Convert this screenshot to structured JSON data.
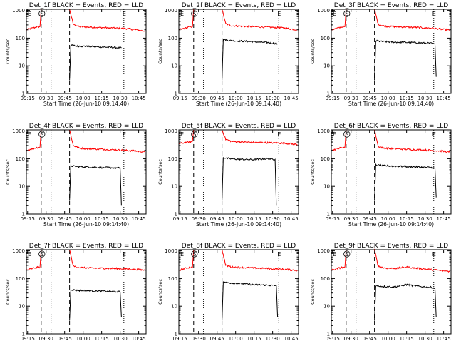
{
  "colors": {
    "events": "#000000",
    "lld": "#ff0000",
    "axis": "#000000",
    "background": "#ffffff"
  },
  "common": {
    "xlabel": "Start Time (26-Jun-10 09:14:40)",
    "ylabel": "Counts/sec",
    "x_tick_labels": [
      "09:15",
      "09:30",
      "09:45",
      "10:00",
      "10:15",
      "10:30",
      "10:45"
    ],
    "y_tick_labels": [
      "1",
      "10",
      "100",
      "1000"
    ],
    "markers": {
      "left_e": "E",
      "left_s": "S",
      "right_e": "E"
    }
  },
  "chart_data": [
    {
      "type": "line",
      "title": "Det_1f BLACK = Events, RED = LLD",
      "xlim": [
        "09:14",
        "10:51"
      ],
      "ylim": [
        1,
        1100
      ],
      "yscale": "log",
      "x_ticks": [
        "09:15",
        "09:30",
        "09:45",
        "10:00",
        "10:15",
        "10:30",
        "10:45"
      ],
      "y_ticks": [
        1,
        10,
        100,
        1000
      ],
      "dashed_lines": [
        "09:26",
        "09:49"
      ],
      "dotted_lines": [
        "09:34",
        "10:33"
      ],
      "series": [
        {
          "color": "red",
          "segments": [
            {
              "x": [
                "09:14",
                "09:19",
                "09:22",
                "09:25",
                "09:26"
              ],
              "y": [
                200,
                230,
                250,
                260,
                1100
              ]
            },
            {
              "x": [
                "09:49",
                "09:52",
                "09:57",
                "10:05",
                "10:15",
                "10:25",
                "10:35",
                "10:43",
                "10:50"
              ],
              "y": [
                1100,
                320,
                260,
                250,
                240,
                230,
                220,
                200,
                180
              ]
            }
          ]
        },
        {
          "color": "black",
          "segments": [
            {
              "x": [
                "09:49",
                "09:50",
                "09:55",
                "10:05",
                "10:15",
                "10:25",
                "10:31"
              ],
              "y": [
                3,
                55,
                52,
                50,
                48,
                46,
                44
              ]
            }
          ]
        }
      ]
    },
    {
      "type": "line",
      "title": "Det_2f BLACK = Events, RED = LLD",
      "xlim": [
        "09:14",
        "10:51"
      ],
      "ylim": [
        1,
        1100
      ],
      "yscale": "log",
      "x_ticks": [
        "09:15",
        "09:30",
        "09:45",
        "10:00",
        "10:15",
        "10:30",
        "10:45"
      ],
      "y_ticks": [
        1,
        10,
        100,
        1000
      ],
      "dashed_lines": [
        "09:26",
        "09:49"
      ],
      "dotted_lines": [
        "09:34",
        "10:35"
      ],
      "series": [
        {
          "color": "red",
          "segments": [
            {
              "x": [
                "09:14",
                "09:19",
                "09:22",
                "09:25",
                "09:26"
              ],
              "y": [
                200,
                230,
                250,
                260,
                1100
              ]
            },
            {
              "x": [
                "09:49",
                "09:52",
                "09:57",
                "10:05",
                "10:15",
                "10:25",
                "10:35",
                "10:43",
                "10:50"
              ],
              "y": [
                1100,
                330,
                280,
                270,
                260,
                250,
                240,
                220,
                200
              ]
            }
          ]
        },
        {
          "color": "black",
          "segments": [
            {
              "x": [
                "09:49",
                "09:50",
                "09:55",
                "10:05",
                "10:15",
                "10:25",
                "10:34"
              ],
              "y": [
                3,
                90,
                82,
                78,
                74,
                70,
                62
              ]
            }
          ]
        }
      ]
    },
    {
      "type": "line",
      "title": "Det_3f BLACK = Events, RED = LLD",
      "xlim": [
        "09:14",
        "10:51"
      ],
      "ylim": [
        1,
        1100
      ],
      "yscale": "log",
      "x_ticks": [
        "09:15",
        "09:30",
        "09:45",
        "10:00",
        "10:15",
        "10:30",
        "10:45"
      ],
      "y_ticks": [
        1,
        10,
        100,
        1000
      ],
      "dashed_lines": [
        "09:26",
        "09:49"
      ],
      "dotted_lines": [
        "09:34",
        "10:37"
      ],
      "series": [
        {
          "color": "red",
          "segments": [
            {
              "x": [
                "09:14",
                "09:19",
                "09:22",
                "09:25",
                "09:26"
              ],
              "y": [
                200,
                230,
                250,
                260,
                1100
              ]
            },
            {
              "x": [
                "09:49",
                "09:52",
                "09:57",
                "10:05",
                "10:15",
                "10:25",
                "10:35",
                "10:43",
                "10:50"
              ],
              "y": [
                1100,
                320,
                270,
                260,
                250,
                240,
                230,
                210,
                190
              ]
            }
          ]
        },
        {
          "color": "black",
          "segments": [
            {
              "x": [
                "09:49",
                "09:50",
                "09:55",
                "10:05",
                "10:15",
                "10:25",
                "10:35",
                "10:38",
                "10:39"
              ],
              "y": [
                3,
                80,
                75,
                72,
                70,
                68,
                65,
                60,
                4
              ]
            }
          ]
        }
      ]
    },
    {
      "type": "line",
      "title": "Det_4f BLACK = Events, RED = LLD",
      "xlim": [
        "09:14",
        "10:51"
      ],
      "ylim": [
        1,
        1100
      ],
      "yscale": "log",
      "x_ticks": [
        "09:15",
        "09:30",
        "09:45",
        "10:00",
        "10:15",
        "10:30",
        "10:45"
      ],
      "y_ticks": [
        1,
        10,
        100,
        1000
      ],
      "dashed_lines": [
        "09:26",
        "09:49"
      ],
      "dotted_lines": [
        "09:34",
        "10:33"
      ],
      "series": [
        {
          "color": "red",
          "segments": [
            {
              "x": [
                "09:14",
                "09:19",
                "09:22",
                "09:25",
                "09:26"
              ],
              "y": [
                200,
                230,
                250,
                260,
                1100
              ]
            },
            {
              "x": [
                "09:49",
                "09:52",
                "09:57",
                "10:05",
                "10:15",
                "10:25",
                "10:35",
                "10:43",
                "10:50"
              ],
              "y": [
                1100,
                300,
                240,
                230,
                220,
                210,
                200,
                190,
                175
              ]
            }
          ]
        },
        {
          "color": "black",
          "segments": [
            {
              "x": [
                "09:49",
                "09:50",
                "09:55",
                "10:05",
                "10:15",
                "10:25",
                "10:30",
                "10:31"
              ],
              "y": [
                3,
                55,
                52,
                50,
                48,
                47,
                46,
                2
              ]
            }
          ]
        }
      ]
    },
    {
      "type": "line",
      "title": "Det_5f BLACK = Events, RED = LLD",
      "xlim": [
        "09:14",
        "10:51"
      ],
      "ylim": [
        1,
        1100
      ],
      "yscale": "log",
      "x_ticks": [
        "09:15",
        "09:30",
        "09:45",
        "10:00",
        "10:15",
        "10:30",
        "10:45"
      ],
      "y_ticks": [
        1,
        10,
        100,
        1000
      ],
      "dashed_lines": [
        "09:26",
        "09:49"
      ],
      "dotted_lines": [
        "09:34",
        "10:35"
      ],
      "series": [
        {
          "color": "red",
          "segments": [
            {
              "x": [
                "09:14",
                "09:19",
                "09:22",
                "09:25",
                "09:26"
              ],
              "y": [
                350,
                380,
                400,
                420,
                1100
              ]
            },
            {
              "x": [
                "09:49",
                "09:52",
                "09:57",
                "10:05",
                "10:15",
                "10:25",
                "10:35",
                "10:43",
                "10:50"
              ],
              "y": [
                1100,
                500,
                420,
                400,
                390,
                380,
                370,
                350,
                330
              ]
            }
          ]
        },
        {
          "color": "black",
          "segments": [
            {
              "x": [
                "09:49",
                "09:50",
                "09:55",
                "10:05",
                "10:15",
                "10:25",
                "10:32",
                "10:33"
              ],
              "y": [
                3,
                110,
                100,
                95,
                92,
                100,
                95,
                2
              ]
            }
          ]
        }
      ]
    },
    {
      "type": "line",
      "title": "Det_6f BLACK = Events, RED = LLD",
      "xlim": [
        "09:14",
        "10:51"
      ],
      "ylim": [
        1,
        1100
      ],
      "yscale": "log",
      "x_ticks": [
        "09:15",
        "09:30",
        "09:45",
        "10:00",
        "10:15",
        "10:30",
        "10:45"
      ],
      "y_ticks": [
        1,
        10,
        100,
        1000
      ],
      "dashed_lines": [
        "09:26",
        "09:49"
      ],
      "dotted_lines": [
        "09:34",
        "10:37"
      ],
      "series": [
        {
          "color": "red",
          "segments": [
            {
              "x": [
                "09:14",
                "09:19",
                "09:22",
                "09:25",
                "09:26"
              ],
              "y": [
                200,
                230,
                250,
                260,
                1100
              ]
            },
            {
              "x": [
                "09:49",
                "09:52",
                "09:57",
                "10:05",
                "10:15",
                "10:25",
                "10:35",
                "10:43",
                "10:50"
              ],
              "y": [
                1100,
                280,
                240,
                230,
                220,
                210,
                200,
                190,
                170
              ]
            }
          ]
        },
        {
          "color": "black",
          "segments": [
            {
              "x": [
                "09:49",
                "09:50",
                "09:55",
                "10:05",
                "10:15",
                "10:25",
                "10:35",
                "10:38",
                "10:39"
              ],
              "y": [
                3,
                60,
                56,
                54,
                52,
                50,
                48,
                45,
                4
              ]
            }
          ]
        }
      ]
    },
    {
      "type": "line",
      "title": "Det_7f BLACK = Events, RED = LLD",
      "xlim": [
        "09:14",
        "10:51"
      ],
      "ylim": [
        1,
        1100
      ],
      "yscale": "log",
      "x_ticks": [
        "09:15",
        "09:30",
        "09:45",
        "10:00",
        "10:15",
        "10:30",
        "10:45"
      ],
      "y_ticks": [
        1,
        10,
        100,
        1000
      ],
      "dashed_lines": [
        "09:26",
        "09:49"
      ],
      "dotted_lines": [
        "09:34",
        "10:33"
      ],
      "series": [
        {
          "color": "red",
          "segments": [
            {
              "x": [
                "09:14",
                "09:19",
                "09:22",
                "09:25",
                "09:26"
              ],
              "y": [
                200,
                230,
                250,
                260,
                1100
              ]
            },
            {
              "x": [
                "09:49",
                "09:52",
                "09:57",
                "10:05",
                "10:15",
                "10:25",
                "10:35",
                "10:43",
                "10:50"
              ],
              "y": [
                1100,
                280,
                250,
                240,
                235,
                230,
                225,
                215,
                200
              ]
            }
          ]
        },
        {
          "color": "black",
          "segments": [
            {
              "x": [
                "09:49",
                "09:50",
                "09:55",
                "10:05",
                "10:15",
                "10:25",
                "10:30",
                "10:31"
              ],
              "y": [
                3,
                40,
                37,
                36,
                35,
                34,
                33,
                4
              ]
            }
          ]
        }
      ]
    },
    {
      "type": "line",
      "title": "Det_8f BLACK = Events, RED = LLD",
      "xlim": [
        "09:14",
        "10:51"
      ],
      "ylim": [
        1,
        1100
      ],
      "yscale": "log",
      "x_ticks": [
        "09:15",
        "09:30",
        "09:45",
        "10:00",
        "10:15",
        "10:30",
        "10:45"
      ],
      "y_ticks": [
        1,
        10,
        100,
        1000
      ],
      "dashed_lines": [
        "09:26",
        "09:49"
      ],
      "dotted_lines": [
        "09:34",
        "10:35"
      ],
      "series": [
        {
          "color": "red",
          "segments": [
            {
              "x": [
                "09:14",
                "09:19",
                "09:22",
                "09:25",
                "09:26"
              ],
              "y": [
                200,
                230,
                250,
                260,
                1100
              ]
            },
            {
              "x": [
                "09:49",
                "09:52",
                "09:57",
                "10:05",
                "10:15",
                "10:25",
                "10:35",
                "10:43",
                "10:50"
              ],
              "y": [
                1100,
                300,
                260,
                250,
                240,
                230,
                220,
                210,
                195
              ]
            }
          ]
        },
        {
          "color": "black",
          "segments": [
            {
              "x": [
                "09:49",
                "09:50",
                "09:55",
                "10:05",
                "10:15",
                "10:25",
                "10:33",
                "10:34"
              ],
              "y": [
                3,
                75,
                70,
                65,
                60,
                58,
                55,
                4
              ]
            }
          ]
        }
      ]
    },
    {
      "type": "line",
      "title": "Det_9f BLACK = Events, RED = LLD",
      "xlim": [
        "09:14",
        "10:51"
      ],
      "ylim": [
        1,
        1100
      ],
      "yscale": "log",
      "x_ticks": [
        "09:15",
        "09:30",
        "09:45",
        "10:00",
        "10:15",
        "10:30",
        "10:45"
      ],
      "y_ticks": [
        1,
        10,
        100,
        1000
      ],
      "dashed_lines": [
        "09:26",
        "09:49"
      ],
      "dotted_lines": [
        "09:34",
        "10:37"
      ],
      "series": [
        {
          "color": "red",
          "segments": [
            {
              "x": [
                "09:14",
                "09:19",
                "09:22",
                "09:25",
                "09:26"
              ],
              "y": [
                200,
                230,
                250,
                260,
                1100
              ]
            },
            {
              "x": [
                "09:49",
                "09:52",
                "09:57",
                "10:05",
                "10:15",
                "10:25",
                "10:35",
                "10:43",
                "10:50"
              ],
              "y": [
                1100,
                280,
                240,
                230,
                260,
                230,
                210,
                195,
                180
              ]
            }
          ]
        },
        {
          "color": "black",
          "segments": [
            {
              "x": [
                "09:49",
                "09:50",
                "09:55",
                "10:05",
                "10:15",
                "10:25",
                "10:35",
                "10:38",
                "10:39"
              ],
              "y": [
                3,
                55,
                52,
                50,
                60,
                52,
                48,
                45,
                4
              ]
            }
          ]
        }
      ]
    }
  ]
}
